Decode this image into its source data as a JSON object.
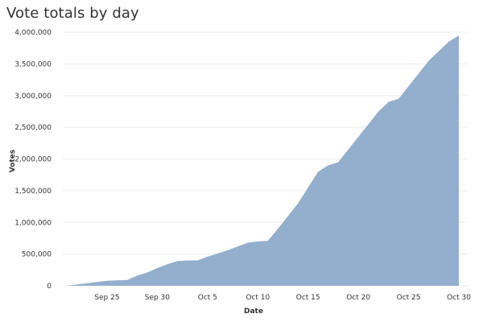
{
  "chart_data": {
    "type": "area",
    "title": "Vote totals by day",
    "xlabel": "Date",
    "ylabel": "Votes",
    "x": [
      "2020-09-21",
      "2020-09-22",
      "2020-09-23",
      "2020-09-24",
      "2020-09-25",
      "2020-09-26",
      "2020-09-27",
      "2020-09-28",
      "2020-09-29",
      "2020-09-30",
      "2020-10-01",
      "2020-10-02",
      "2020-10-03",
      "2020-10-04",
      "2020-10-05",
      "2020-10-06",
      "2020-10-07",
      "2020-10-08",
      "2020-10-09",
      "2020-10-10",
      "2020-10-11",
      "2020-10-12",
      "2020-10-13",
      "2020-10-14",
      "2020-10-15",
      "2020-10-16",
      "2020-10-17",
      "2020-10-18",
      "2020-10-19",
      "2020-10-20",
      "2020-10-21",
      "2020-10-22",
      "2020-10-23",
      "2020-10-24",
      "2020-10-25",
      "2020-10-26",
      "2020-10-27",
      "2020-10-28",
      "2020-10-29",
      "2020-10-30"
    ],
    "values": [
      0,
      20000,
      40000,
      60000,
      80000,
      85000,
      90000,
      160000,
      210000,
      280000,
      340000,
      390000,
      400000,
      400000,
      460000,
      510000,
      560000,
      620000,
      680000,
      700000,
      710000,
      900000,
      1100000,
      1300000,
      1550000,
      1800000,
      1900000,
      1950000,
      2150000,
      2350000,
      2550000,
      2750000,
      2900000,
      2950000,
      3150000,
      3350000,
      3550000,
      3700000,
      3850000,
      3950000
    ],
    "x_ticks": [
      "Sep 25",
      "Sep 30",
      "Oct 5",
      "Oct 10",
      "Oct 15",
      "Oct 20",
      "Oct 25",
      "Oct 30"
    ],
    "x_tick_dates": [
      "2020-09-25",
      "2020-09-30",
      "2020-10-05",
      "2020-10-10",
      "2020-10-15",
      "2020-10-20",
      "2020-10-25",
      "2020-10-30"
    ],
    "y_ticks": [
      0,
      500000,
      1000000,
      1500000,
      2000000,
      2500000,
      3000000,
      3500000,
      4000000
    ],
    "y_tick_labels": [
      "0",
      "500,000",
      "1,000,000",
      "1,500,000",
      "2,000,000",
      "2,500,000",
      "3,000,000",
      "3,500,000",
      "4,000,000"
    ],
    "ylim": [
      0,
      4000000
    ],
    "grid": true,
    "color": "#93afcd"
  }
}
